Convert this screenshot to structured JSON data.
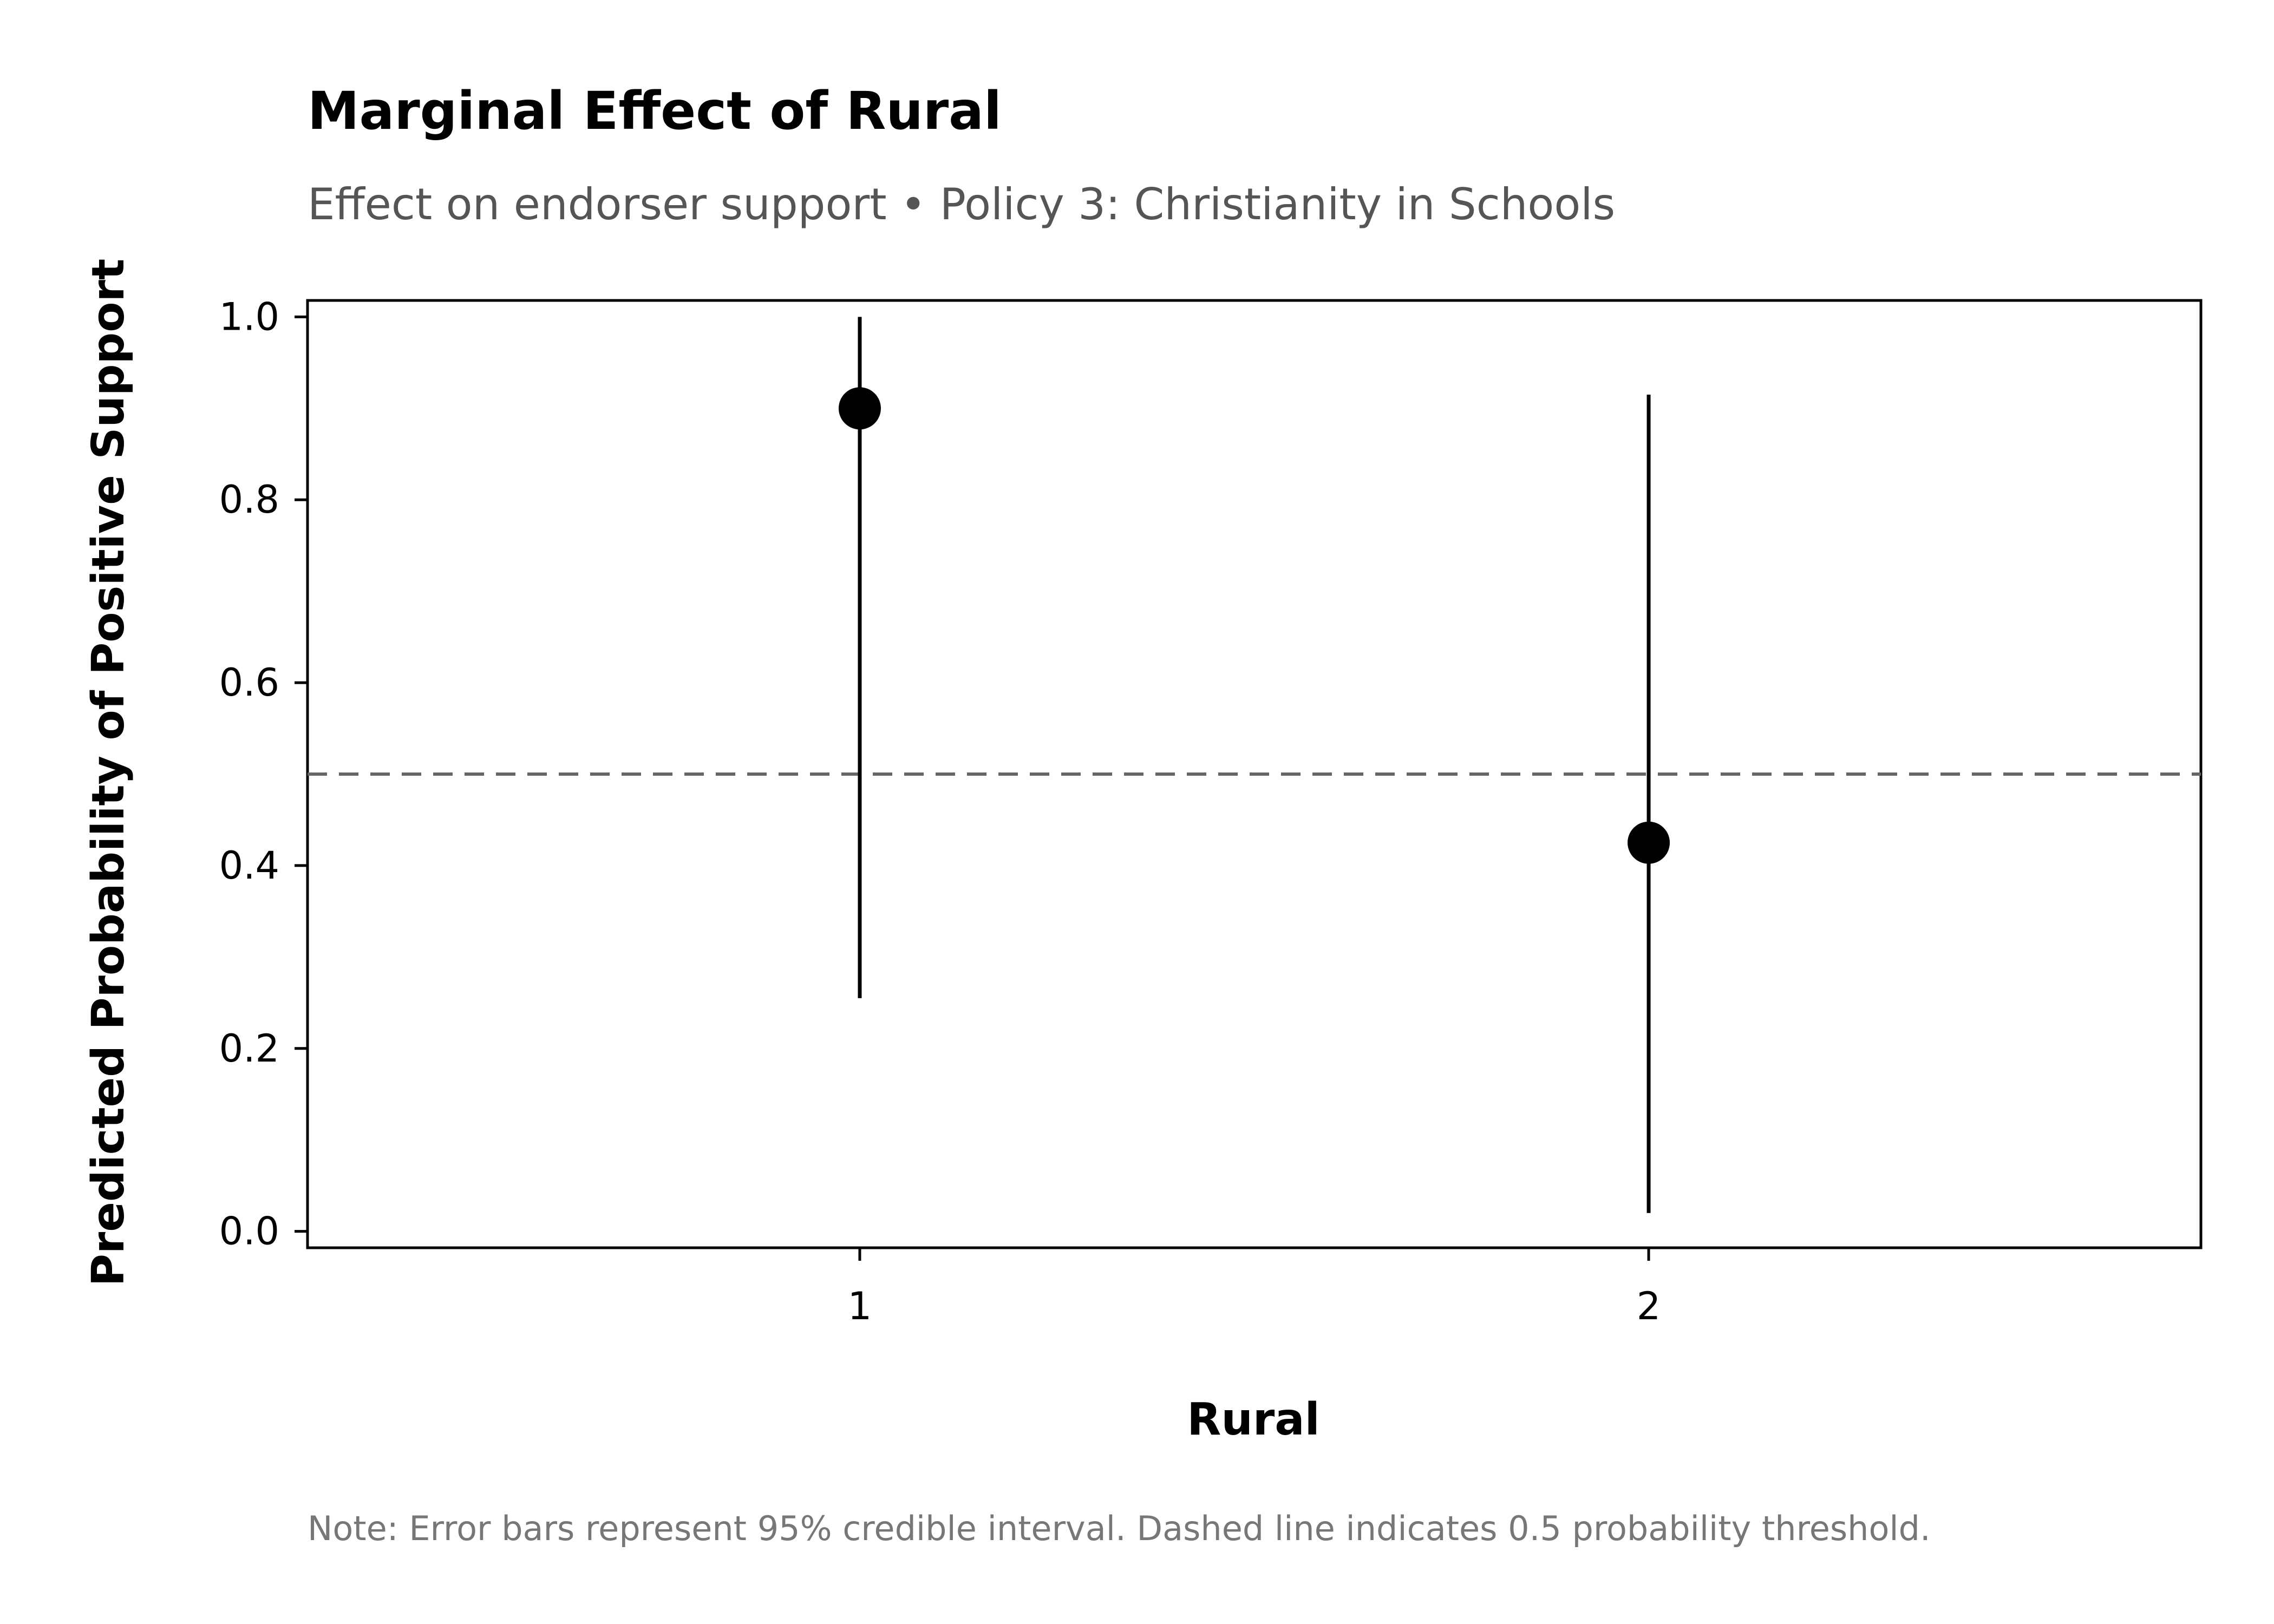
{
  "chart_data": {
    "type": "scatter",
    "title": "Marginal Effect of Rural",
    "subtitle": "Effect on endorser support • Policy 3: Christianity in Schools",
    "xlabel": "Rural",
    "ylabel": "Predicted Probability of Positive Support",
    "categories": [
      "1",
      "2"
    ],
    "values": [
      0.9,
      0.425
    ],
    "ci_lower": [
      0.255,
      0.02
    ],
    "ci_upper": [
      1.0,
      0.915
    ],
    "ylim": [
      -0.018,
      1.018
    ],
    "yticks": [
      0.0,
      0.2,
      0.4,
      0.6,
      0.8,
      1.0
    ],
    "ytick_labels": [
      "0.0",
      "0.2",
      "0.4",
      "0.6",
      "0.8",
      "1.0"
    ],
    "reference_line": 0.5,
    "grid": false,
    "note": "Note: Error bars represent 95% credible interval. Dashed line indicates 0.5 probability threshold.",
    "colors": {
      "points": "#000000",
      "error_bars": "#000000",
      "reference_line": "#666666",
      "subtitle": "#555555",
      "note": "#777777"
    }
  }
}
